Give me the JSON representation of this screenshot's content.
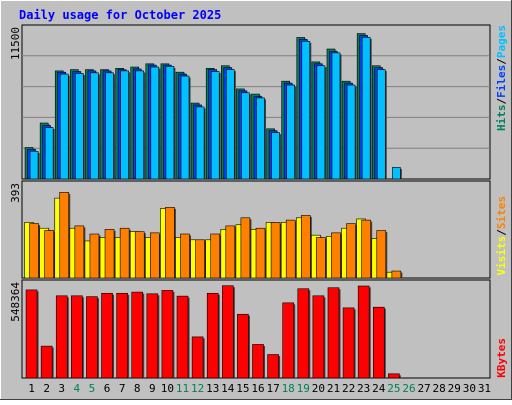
{
  "title": "Daily usage for October 2025",
  "colors": {
    "background": "#c0c0c0",
    "plot_bg": "#c0c0c0",
    "title": "#0000ff",
    "hits": "#00805c",
    "files": "#0040ff",
    "pages": "#00c0ff",
    "visits": "#ffff00",
    "sites": "#ff8000",
    "kbytes": "#ff0000",
    "weekend_day_label": "#00805c",
    "weekday_label": "#000000",
    "gridline": "#808080"
  },
  "chart_data": [
    {
      "type": "bar",
      "panel": "top",
      "y_max_label": "11500",
      "ylim": [
        0,
        11500
      ],
      "right_label_parts": [
        "Pages",
        "/",
        "Files",
        "/",
        "Hits"
      ],
      "categories": [
        "1",
        "2",
        "3",
        "4",
        "5",
        "6",
        "7",
        "8",
        "9",
        "10",
        "11",
        "12",
        "13",
        "14",
        "15",
        "16",
        "17",
        "18",
        "19",
        "20",
        "21",
        "22",
        "23",
        "24",
        "25",
        "26",
        "27",
        "28",
        "29",
        "30",
        "31"
      ],
      "series": [
        {
          "name": "Hits",
          "values": [
            2450,
            4350,
            8400,
            8500,
            8500,
            8500,
            8600,
            8700,
            8950,
            8950,
            8300,
            5900,
            8600,
            8800,
            7000,
            6600,
            3900,
            7600,
            11000,
            9100,
            10100,
            7600,
            11300,
            8800,
            0,
            0,
            0,
            0,
            0,
            0,
            0
          ]
        },
        {
          "name": "Files",
          "values": [
            2300,
            4150,
            8300,
            8350,
            8400,
            8400,
            8500,
            8550,
            8850,
            8850,
            8150,
            5750,
            8500,
            8650,
            6850,
            6400,
            3750,
            7450,
            10850,
            8950,
            9900,
            7450,
            11150,
            8650,
            0,
            0,
            0,
            0,
            0,
            0,
            0
          ]
        },
        {
          "name": "Pages",
          "values": [
            2150,
            4000,
            8150,
            8200,
            8250,
            8250,
            8400,
            8400,
            8700,
            8750,
            8000,
            5600,
            8350,
            8500,
            6700,
            6300,
            3600,
            7300,
            10700,
            8800,
            9800,
            7300,
            11000,
            8500,
            900,
            0,
            0,
            0,
            0,
            0,
            0
          ]
        }
      ]
    },
    {
      "type": "bar",
      "panel": "middle",
      "y_max_label": "393",
      "ylim": [
        0,
        393
      ],
      "right_label_parts": [
        "Sites",
        "/",
        "Visits"
      ],
      "categories": [
        "1",
        "2",
        "3",
        "4",
        "5",
        "6",
        "7",
        "8",
        "9",
        "10",
        "11",
        "12",
        "13",
        "14",
        "15",
        "16",
        "17",
        "18",
        "19",
        "20",
        "21",
        "22",
        "23",
        "24",
        "25",
        "26",
        "27",
        "28",
        "29",
        "30",
        "31"
      ],
      "series": [
        {
          "name": "Visits",
          "values": [
            240,
            215,
            345,
            215,
            160,
            175,
            175,
            200,
            175,
            300,
            175,
            165,
            165,
            210,
            230,
            210,
            240,
            240,
            260,
            185,
            180,
            215,
            255,
            170,
            25,
            0,
            0,
            0,
            0,
            0,
            0
          ]
        },
        {
          "name": "Sites",
          "values": [
            235,
            205,
            370,
            225,
            190,
            210,
            215,
            200,
            195,
            305,
            190,
            165,
            190,
            225,
            260,
            215,
            240,
            250,
            270,
            175,
            195,
            235,
            250,
            205,
            30,
            0,
            0,
            0,
            0,
            0,
            0
          ]
        }
      ]
    },
    {
      "type": "bar",
      "panel": "bottom",
      "y_max_label": "548364",
      "ylim": [
        0,
        548364
      ],
      "right_label_parts": [
        "KBytes"
      ],
      "categories": [
        "1",
        "2",
        "3",
        "4",
        "5",
        "6",
        "7",
        "8",
        "9",
        "10",
        "11",
        "12",
        "13",
        "14",
        "15",
        "16",
        "17",
        "18",
        "19",
        "20",
        "21",
        "22",
        "23",
        "24",
        "25",
        "26",
        "27",
        "28",
        "29",
        "30",
        "31"
      ],
      "series": [
        {
          "name": "KBytes",
          "values": [
            525000,
            190000,
            490000,
            490000,
            485000,
            505000,
            505000,
            512000,
            502000,
            522000,
            488000,
            245000,
            505000,
            550000,
            380000,
            200000,
            140000,
            448000,
            532000,
            490000,
            538000,
            418000,
            548364,
            422000,
            25000,
            0,
            0,
            0,
            0,
            0,
            0
          ]
        }
      ]
    }
  ],
  "x_axis": {
    "labels": [
      "1",
      "2",
      "3",
      "4",
      "5",
      "6",
      "7",
      "8",
      "9",
      "10",
      "11",
      "12",
      "13",
      "14",
      "15",
      "16",
      "17",
      "18",
      "19",
      "20",
      "21",
      "22",
      "23",
      "24",
      "25",
      "26",
      "27",
      "28",
      "29",
      "30",
      "31"
    ],
    "weekend_days": [
      4,
      5,
      11,
      12,
      18,
      19,
      25,
      26
    ]
  }
}
